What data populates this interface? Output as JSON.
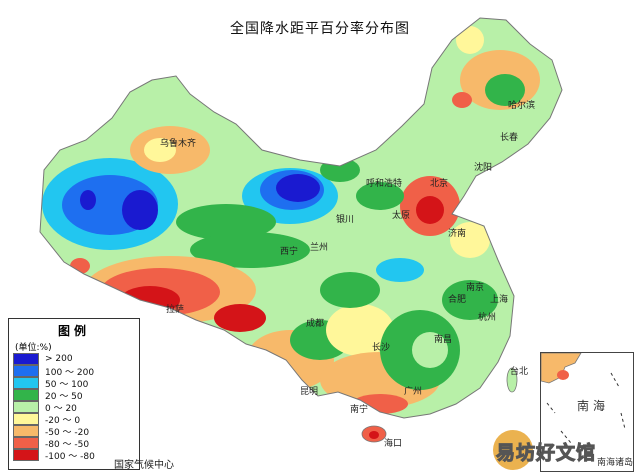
{
  "title": "全国降水距平百分率分布图",
  "legend": {
    "title": "图例",
    "unit": "(单位:%)",
    "items": [
      {
        "label": "> 200",
        "color": "#1a1ad0"
      },
      {
        "label": "100 ～ 200",
        "color": "#1e6ff0"
      },
      {
        "label": "50 ～ 100",
        "color": "#22c6f0"
      },
      {
        "label": "20 ～ 50",
        "color": "#32b44a"
      },
      {
        "label": "0 ～ 20",
        "color": "#b8f0a8"
      },
      {
        "label": "-20 ～ 0",
        "color": "#fff79a"
      },
      {
        "label": "-50 ～ -20",
        "color": "#f7b96a"
      },
      {
        "label": "-80 ～ -50",
        "color": "#f06048"
      },
      {
        "label": "-100 ～ -80",
        "color": "#d41418"
      }
    ]
  },
  "cities": {
    "urumqi": "乌鲁木齐",
    "hohhot": "呼和浩特",
    "beijing": "北京",
    "taiyuan": "太原",
    "yinchuan": "银川",
    "lanzhou": "兰州",
    "xining": "西宁",
    "lhasa": "拉萨",
    "chengdu": "成都",
    "kunming": "昆明",
    "nanning": "南宁",
    "guangzhou": "广州",
    "haikou": "海口",
    "changsha": "长沙",
    "nanchang": "南昌",
    "hangzhou": "杭州",
    "shanghai": "上海",
    "hefei": "合肥",
    "nanjing": "南京",
    "taipei": "台北",
    "jinan": "济南",
    "harbin": "哈尔滨",
    "changchun": "长春",
    "shenyang": "沈阳"
  },
  "credit": "国家气候中心",
  "inset": {
    "sea": "南海",
    "islands": "南海诸岛"
  },
  "watermark": "易坊好文馆"
}
